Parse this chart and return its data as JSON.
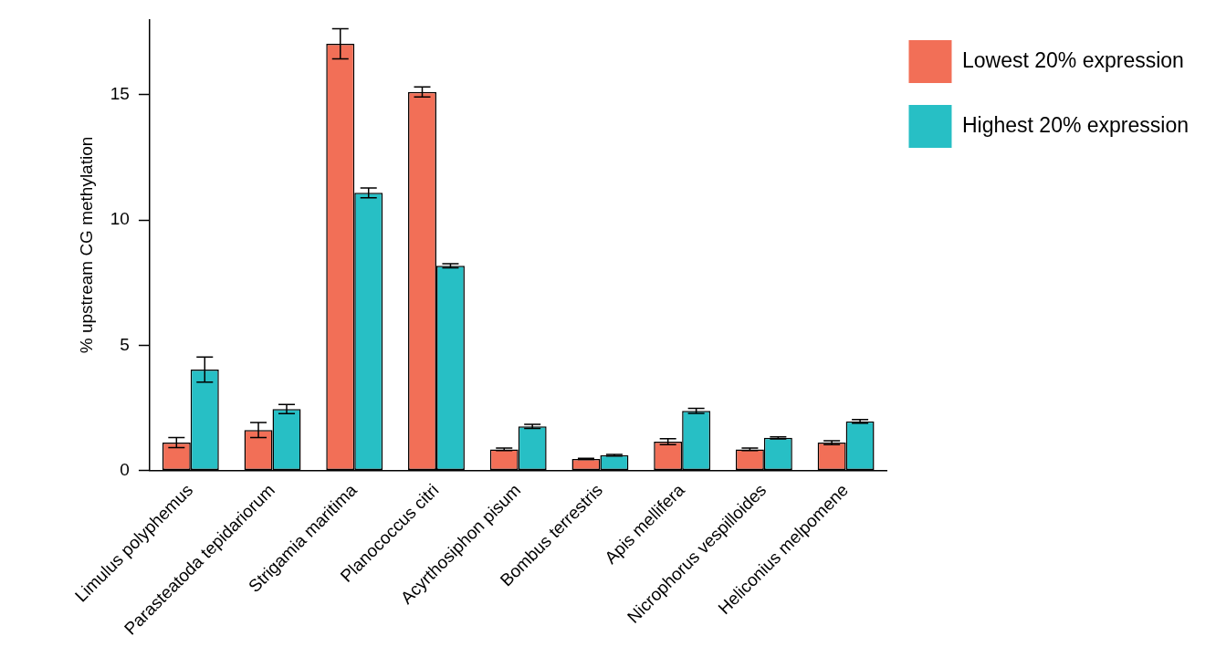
{
  "chart_data": {
    "type": "bar",
    "ylabel": "% upstream CG methylation",
    "categories": [
      "Limulus polyphemus",
      "Parasteatoda tepidariorum",
      "Strigamia maritima",
      "Planococcus citri",
      "Acyrthosiphon pisum",
      "Bombus terrestris",
      "Apis mellifera",
      "Nicrophorus vespilloides",
      "Heliconius melpomene"
    ],
    "series": [
      {
        "name": "Lowest 20% expression",
        "color": "#f26f57",
        "values": [
          1.11,
          1.61,
          17.03,
          15.11,
          0.84,
          0.46,
          1.15,
          0.84,
          1.11
        ],
        "errors": [
          0.2,
          0.3,
          0.6,
          0.2,
          0.05,
          0.02,
          0.12,
          0.05,
          0.08
        ]
      },
      {
        "name": "Highest 20% expression",
        "color": "#27bfc5",
        "values": [
          4.03,
          2.45,
          11.08,
          8.17,
          1.76,
          0.61,
          2.38,
          1.3,
          1.96
        ],
        "errors": [
          0.5,
          0.18,
          0.2,
          0.08,
          0.08,
          0.03,
          0.1,
          0.04,
          0.07
        ]
      }
    ],
    "ylim": [
      0,
      18
    ],
    "yticks": [
      0,
      5,
      10,
      15
    ],
    "grid": false,
    "legend": "top right"
  }
}
